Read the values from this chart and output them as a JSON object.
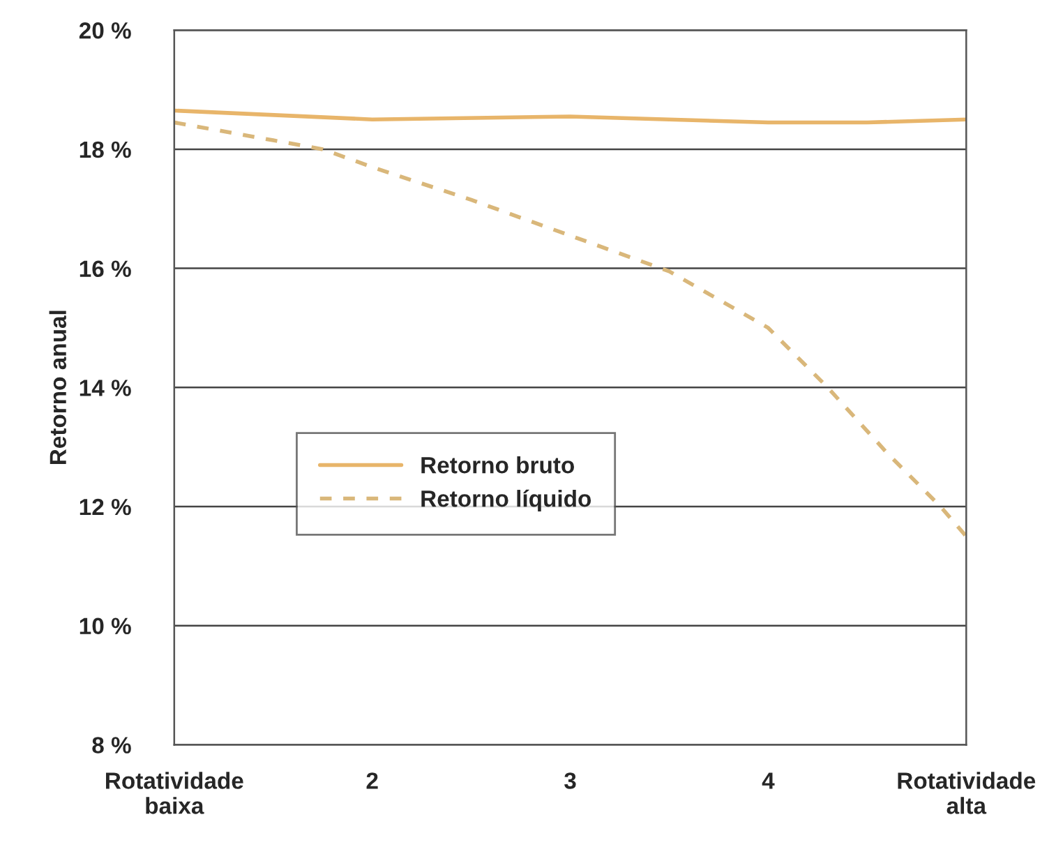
{
  "chart_data": {
    "type": "line",
    "ylabel": "Retorno anual",
    "xlim": [
      1,
      5
    ],
    "xticks": [
      {
        "value": 1,
        "label": "Rotatividade\nbaixa"
      },
      2,
      3,
      4,
      {
        "value": 5,
        "label": "Rotatividade\nalta"
      }
    ],
    "ylim": [
      8,
      20
    ],
    "yticks": [
      {
        "value": 8,
        "label": "8 %"
      },
      {
        "value": 10,
        "label": "10 %"
      },
      {
        "value": 12,
        "label": "12 %"
      },
      {
        "value": 14,
        "label": "14 %"
      },
      {
        "value": 16,
        "label": "16 %"
      },
      {
        "value": 18,
        "label": "18 %"
      },
      {
        "value": 20,
        "label": "20 %"
      }
    ],
    "grid": "y",
    "legend": "center left",
    "series": [
      {
        "name": "Retorno bruto",
        "color": "#e8b56a",
        "line_style": "solid",
        "x": [
          1,
          2,
          3,
          4,
          4.5,
          5
        ],
        "values": [
          18.65,
          18.5,
          18.55,
          18.45,
          18.45,
          18.5
        ]
      },
      {
        "name": "Retorno líquido",
        "color": "#d9b77a",
        "line_style": "dashed",
        "x": [
          1,
          1.5,
          1.75,
          2,
          2.5,
          3,
          3.5,
          4,
          4.3,
          4.6,
          4.87,
          5
        ],
        "values": [
          18.45,
          18.15,
          18.0,
          17.7,
          17.15,
          16.55,
          15.95,
          15.0,
          14.0,
          12.9,
          12.0,
          11.5
        ]
      }
    ]
  }
}
